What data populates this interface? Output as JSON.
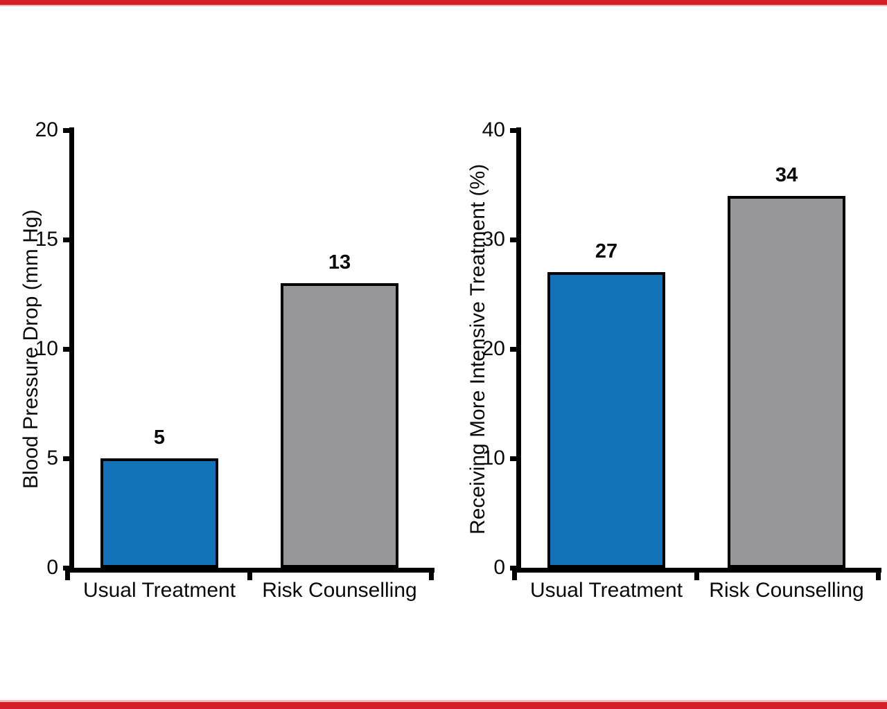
{
  "palette": {
    "top_bottom_bar_red": "#d51f28",
    "top_bottom_bar_pink": "#f3b7ba",
    "bar_blue": "#1373b8",
    "bar_gray": "#97979a",
    "axis_black": "#000000",
    "background": "#ffffff"
  },
  "chart_data": [
    {
      "type": "bar",
      "title": "",
      "categories": [
        "Usual Treatment",
        "Risk Counselling"
      ],
      "values": [
        5,
        13
      ],
      "bar_labels": [
        "5",
        "13"
      ],
      "bar_colors": [
        "#1373b8",
        "#97979a"
      ],
      "xlabel": "",
      "ylabel": "Blood Pressure Drop (mm Hg)",
      "ylim": [
        0,
        20
      ],
      "yticks": [
        0,
        5,
        10,
        15,
        20
      ],
      "ytick_labels": [
        "0",
        "5",
        "10",
        "15",
        "20"
      ],
      "grid": false,
      "legend": null
    },
    {
      "type": "bar",
      "title": "",
      "categories": [
        "Usual Treatment",
        "Risk Counselling"
      ],
      "values": [
        27,
        34
      ],
      "bar_labels": [
        "27",
        "34"
      ],
      "bar_colors": [
        "#1373b8",
        "#97979a"
      ],
      "xlabel": "",
      "ylabel": "Receiving More Intensive Treatment (%)",
      "ylim": [
        0,
        40
      ],
      "yticks": [
        0,
        10,
        20,
        30,
        40
      ],
      "ytick_labels": [
        "0",
        "10",
        "20",
        "30",
        "40"
      ],
      "grid": false,
      "legend": null
    }
  ]
}
